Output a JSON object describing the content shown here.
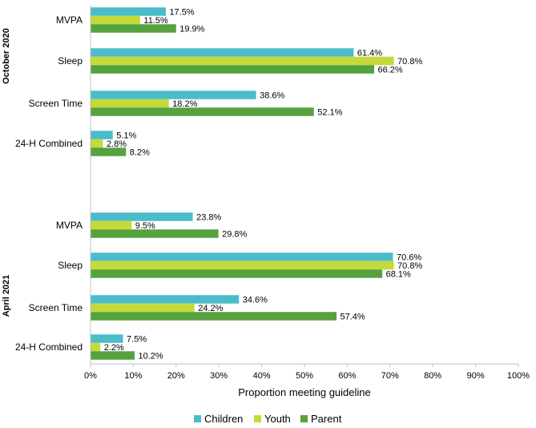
{
  "chart_data": {
    "type": "bar",
    "orientation": "horizontal",
    "xlabel": "Proportion meeting guideline",
    "xlim": [
      0,
      100
    ],
    "x_ticks": [
      "0%",
      "10%",
      "20%",
      "30%",
      "40%",
      "50%",
      "60%",
      "70%",
      "80%",
      "90%",
      "100%"
    ],
    "legend": {
      "placement": "bottom",
      "entries": [
        {
          "name": "Children",
          "color": "#4bbcc9"
        },
        {
          "name": "Youth",
          "color": "#c5d93a"
        },
        {
          "name": "Parent",
          "color": "#55a23f"
        }
      ]
    },
    "groups": [
      {
        "name": "October 2020",
        "categories": [
          {
            "name": "MVPA",
            "values": [
              17.5,
              11.5,
              19.9
            ],
            "labels": [
              "17.5%",
              "11.5%",
              "19.9%"
            ]
          },
          {
            "name": "Sleep",
            "values": [
              61.4,
              70.8,
              66.2
            ],
            "labels": [
              "61.4%",
              "70.8%",
              "66.2%"
            ]
          },
          {
            "name": "Screen Time",
            "values": [
              38.6,
              18.2,
              52.1
            ],
            "labels": [
              "38.6%",
              "18.2%",
              "52.1%"
            ]
          },
          {
            "name": "24-H Combined",
            "values": [
              5.1,
              2.8,
              8.2
            ],
            "labels": [
              "5.1%",
              "2.8%",
              "8.2%"
            ]
          }
        ]
      },
      {
        "name": "April 2021",
        "categories": [
          {
            "name": "MVPA",
            "values": [
              23.8,
              9.5,
              29.8
            ],
            "labels": [
              "23.8%",
              "9.5%",
              "29.8%"
            ]
          },
          {
            "name": "Sleep",
            "values": [
              70.6,
              70.8,
              68.1
            ],
            "labels": [
              "70.6%",
              "70.8%",
              "68.1%"
            ]
          },
          {
            "name": "Screen Time",
            "values": [
              34.6,
              24.2,
              57.4
            ],
            "labels": [
              "34.6%",
              "24.2%",
              "57.4%"
            ]
          },
          {
            "name": "24-H Combined",
            "values": [
              7.5,
              2.2,
              10.2
            ],
            "labels": [
              "7.5%",
              "2.2%",
              "10.2%"
            ]
          }
        ]
      }
    ]
  }
}
